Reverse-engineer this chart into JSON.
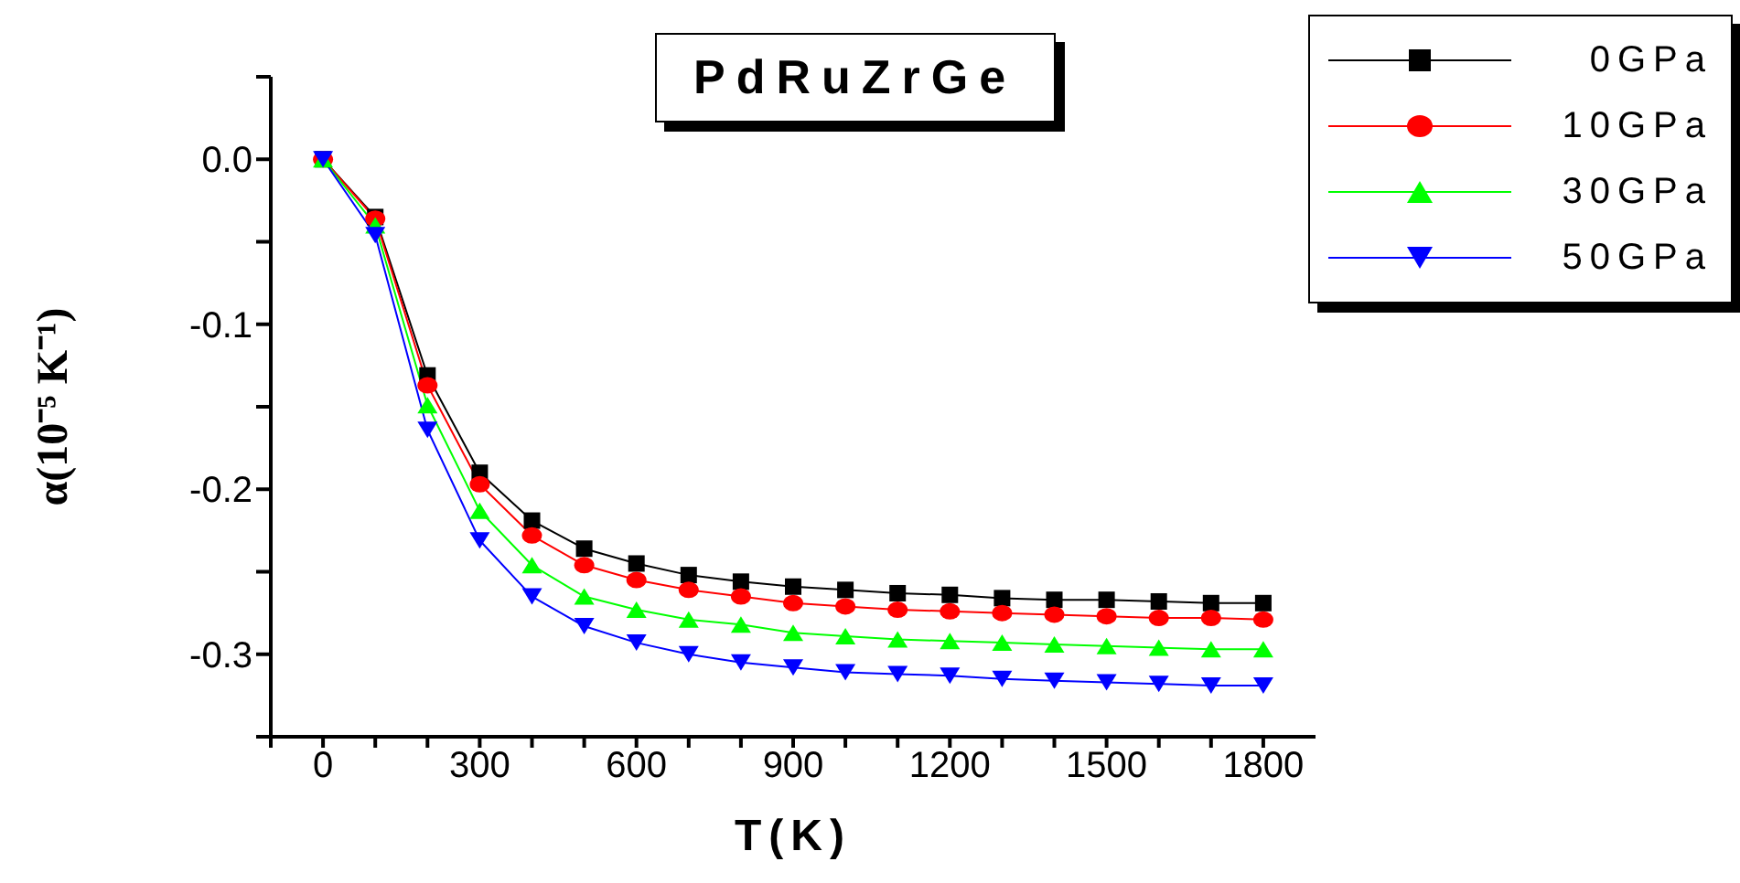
{
  "chart_data": {
    "type": "line",
    "title": "PdRuZrGe",
    "xlabel": "T(K)",
    "ylabel": "α(10⁻⁵ K⁻¹)",
    "x": [
      0,
      100,
      200,
      300,
      400,
      500,
      600,
      700,
      800,
      900,
      1000,
      1100,
      1200,
      1300,
      1400,
      1500,
      1600,
      1700,
      1800
    ],
    "series": [
      {
        "name": "0GPa",
        "color": "#000000",
        "marker": "square",
        "values": [
          0,
          -0.035,
          -0.131,
          -0.19,
          -0.219,
          -0.236,
          -0.245,
          -0.252,
          -0.256,
          -0.259,
          -0.261,
          -0.263,
          -0.264,
          -0.266,
          -0.267,
          -0.267,
          -0.268,
          -0.269,
          -0.269
        ]
      },
      {
        "name": "10GPa",
        "color": "#ff0000",
        "marker": "circle",
        "values": [
          0,
          -0.036,
          -0.137,
          -0.197,
          -0.228,
          -0.246,
          -0.255,
          -0.261,
          -0.265,
          -0.269,
          -0.271,
          -0.273,
          -0.274,
          -0.275,
          -0.276,
          -0.277,
          -0.278,
          -0.278,
          -0.279
        ]
      },
      {
        "name": "30GPa",
        "color": "#00ff00",
        "marker": "triangle",
        "values": [
          0,
          -0.04,
          -0.149,
          -0.213,
          -0.246,
          -0.265,
          -0.273,
          -0.279,
          -0.282,
          -0.287,
          -0.289,
          -0.291,
          -0.292,
          -0.293,
          -0.294,
          -0.295,
          -0.296,
          -0.297,
          -0.297
        ]
      },
      {
        "name": "50GPa",
        "color": "#0000ff",
        "marker": "triangle-down",
        "values": [
          0,
          -0.046,
          -0.164,
          -0.231,
          -0.265,
          -0.283,
          -0.293,
          -0.3,
          -0.305,
          -0.308,
          -0.311,
          -0.312,
          -0.313,
          -0.315,
          -0.316,
          -0.317,
          -0.318,
          -0.319,
          -0.319
        ]
      }
    ],
    "xlim": [
      -100,
      1900
    ],
    "xticks": [
      {
        "value": -100,
        "label": null
      },
      0,
      {
        "value": 100,
        "label": null
      },
      {
        "value": 200,
        "label": null
      },
      300,
      {
        "value": 400,
        "label": null
      },
      {
        "value": 500,
        "label": null
      },
      600,
      {
        "value": 700,
        "label": null
      },
      {
        "value": 800,
        "label": null
      },
      900,
      {
        "value": 1000,
        "label": null
      },
      {
        "value": 1100,
        "label": null
      },
      1200,
      {
        "value": 1300,
        "label": null
      },
      {
        "value": 1400,
        "label": null
      },
      1500,
      {
        "value": 1600,
        "label": null
      },
      {
        "value": 1700,
        "label": null
      },
      1800
    ],
    "ylim": [
      -0.35,
      0.05
    ],
    "yticks": [
      {
        "value": -0.35,
        "label": null
      },
      {
        "value": -0.3,
        "label": "-0.3"
      },
      {
        "value": -0.25,
        "label": null
      },
      {
        "value": -0.2,
        "label": "-0.2"
      },
      {
        "value": -0.15,
        "label": null
      },
      {
        "value": -0.1,
        "label": "-0.1"
      },
      {
        "value": -0.05,
        "label": null
      },
      {
        "value": 0,
        "label": "0.0"
      },
      {
        "value": 0.05,
        "label": null
      }
    ],
    "legend": "top right"
  }
}
